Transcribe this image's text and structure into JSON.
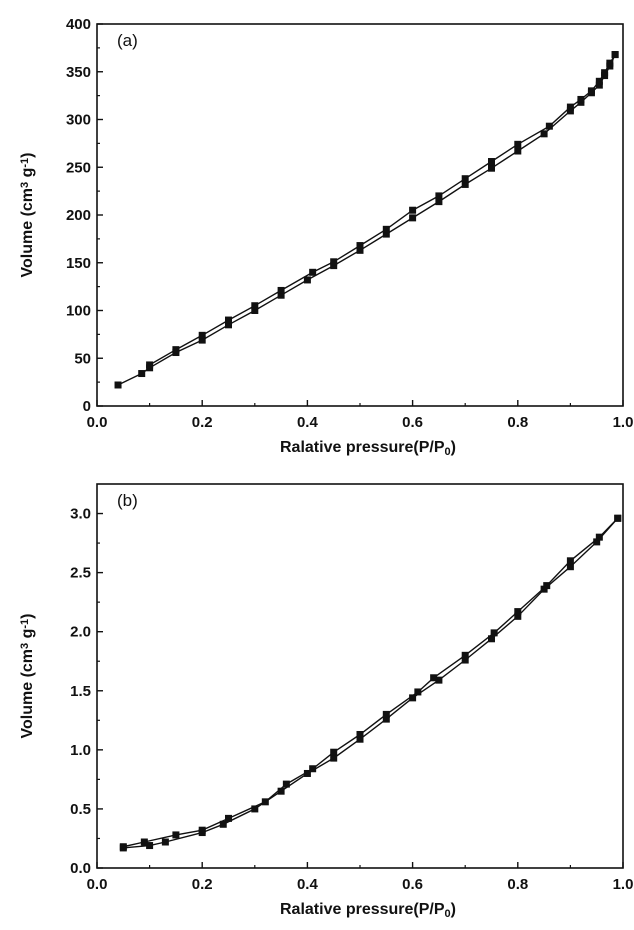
{
  "chart_data": [
    {
      "type": "line",
      "panel_label": "(a)",
      "xlabel": {
        "main": "Ralative pressure(P/P",
        "sub": "0",
        "tail": ")"
      },
      "ylabel": {
        "main": "Volume (cm",
        "sup1": "3",
        "mid": " g",
        "sup2": "-1",
        "tail": ")"
      },
      "xlim": [
        0.0,
        1.0
      ],
      "ylim": [
        0,
        400
      ],
      "xticks": [
        0.0,
        0.2,
        0.4,
        0.6,
        0.8,
        1.0
      ],
      "xtick_labels": [
        "0.0",
        "0.2",
        "0.4",
        "0.6",
        "0.8",
        "1.0"
      ],
      "yticks": [
        0,
        50,
        100,
        150,
        200,
        250,
        300,
        350,
        400
      ],
      "ytick_labels": [
        "0",
        "50",
        "100",
        "150",
        "200",
        "250",
        "300",
        "350",
        "400"
      ],
      "grid": false,
      "marker": "square",
      "color": "#111111",
      "series": [
        {
          "x": [
            0.04,
            0.085,
            0.1,
            0.15,
            0.2,
            0.25,
            0.3,
            0.35,
            0.4,
            0.45,
            0.5,
            0.55,
            0.6,
            0.65,
            0.7,
            0.75,
            0.8,
            0.85,
            0.9,
            0.92,
            0.94,
            0.955,
            0.965,
            0.975,
            0.985
          ],
          "y": [
            22,
            34,
            40,
            56,
            69,
            85,
            100,
            116,
            132,
            147,
            163,
            180,
            197,
            214,
            232,
            249,
            267,
            285,
            309,
            318,
            328,
            336,
            346,
            356,
            368
          ]
        },
        {
          "x": [
            0.985,
            0.975,
            0.965,
            0.955,
            0.94,
            0.92,
            0.9,
            0.86,
            0.8,
            0.75,
            0.7,
            0.65,
            0.6,
            0.55,
            0.5,
            0.45,
            0.41,
            0.35,
            0.3,
            0.25,
            0.2,
            0.15,
            0.1
          ],
          "y": [
            368,
            359,
            349,
            340,
            330,
            321,
            313,
            293,
            274,
            256,
            238,
            220,
            205,
            185,
            168,
            151,
            140,
            121,
            105,
            90,
            74,
            59,
            43
          ]
        }
      ]
    },
    {
      "type": "line",
      "panel_label": "(b)",
      "xlabel": {
        "main": "Ralative pressure(P/P",
        "sub": "0",
        "tail": ")"
      },
      "ylabel": {
        "main": "Volume (cm",
        "sup1": "3",
        "mid": " g",
        "sup2": "-1",
        "tail": ")"
      },
      "xlim": [
        0.0,
        1.0
      ],
      "ylim": [
        0.0,
        3.25
      ],
      "xticks": [
        0.0,
        0.2,
        0.4,
        0.6,
        0.8,
        1.0
      ],
      "xtick_labels": [
        "0.0",
        "0.2",
        "0.4",
        "0.6",
        "0.8",
        "1.0"
      ],
      "yticks": [
        0.0,
        0.5,
        1.0,
        1.5,
        2.0,
        2.5,
        3.0
      ],
      "ytick_labels": [
        "0.0",
        "0.5",
        "1.0",
        "1.5",
        "2.0",
        "2.5",
        "3.0"
      ],
      "grid": false,
      "marker": "square",
      "color": "#111111",
      "series": [
        {
          "x": [
            0.05,
            0.1,
            0.13,
            0.2,
            0.24,
            0.3,
            0.35,
            0.4,
            0.45,
            0.5,
            0.55,
            0.6,
            0.65,
            0.7,
            0.75,
            0.8,
            0.85,
            0.9,
            0.95,
            0.99
          ],
          "y": [
            0.17,
            0.19,
            0.22,
            0.3,
            0.37,
            0.5,
            0.65,
            0.8,
            0.93,
            1.09,
            1.26,
            1.44,
            1.59,
            1.76,
            1.94,
            2.13,
            2.36,
            2.55,
            2.76,
            2.96
          ]
        },
        {
          "x": [
            0.99,
            0.955,
            0.9,
            0.855,
            0.8,
            0.755,
            0.7,
            0.64,
            0.61,
            0.55,
            0.5,
            0.45,
            0.41,
            0.36,
            0.32,
            0.25,
            0.2,
            0.15,
            0.09,
            0.05
          ],
          "y": [
            2.96,
            2.8,
            2.6,
            2.39,
            2.17,
            1.99,
            1.8,
            1.61,
            1.49,
            1.3,
            1.13,
            0.98,
            0.84,
            0.71,
            0.56,
            0.42,
            0.32,
            0.28,
            0.22,
            0.18
          ]
        }
      ]
    }
  ]
}
